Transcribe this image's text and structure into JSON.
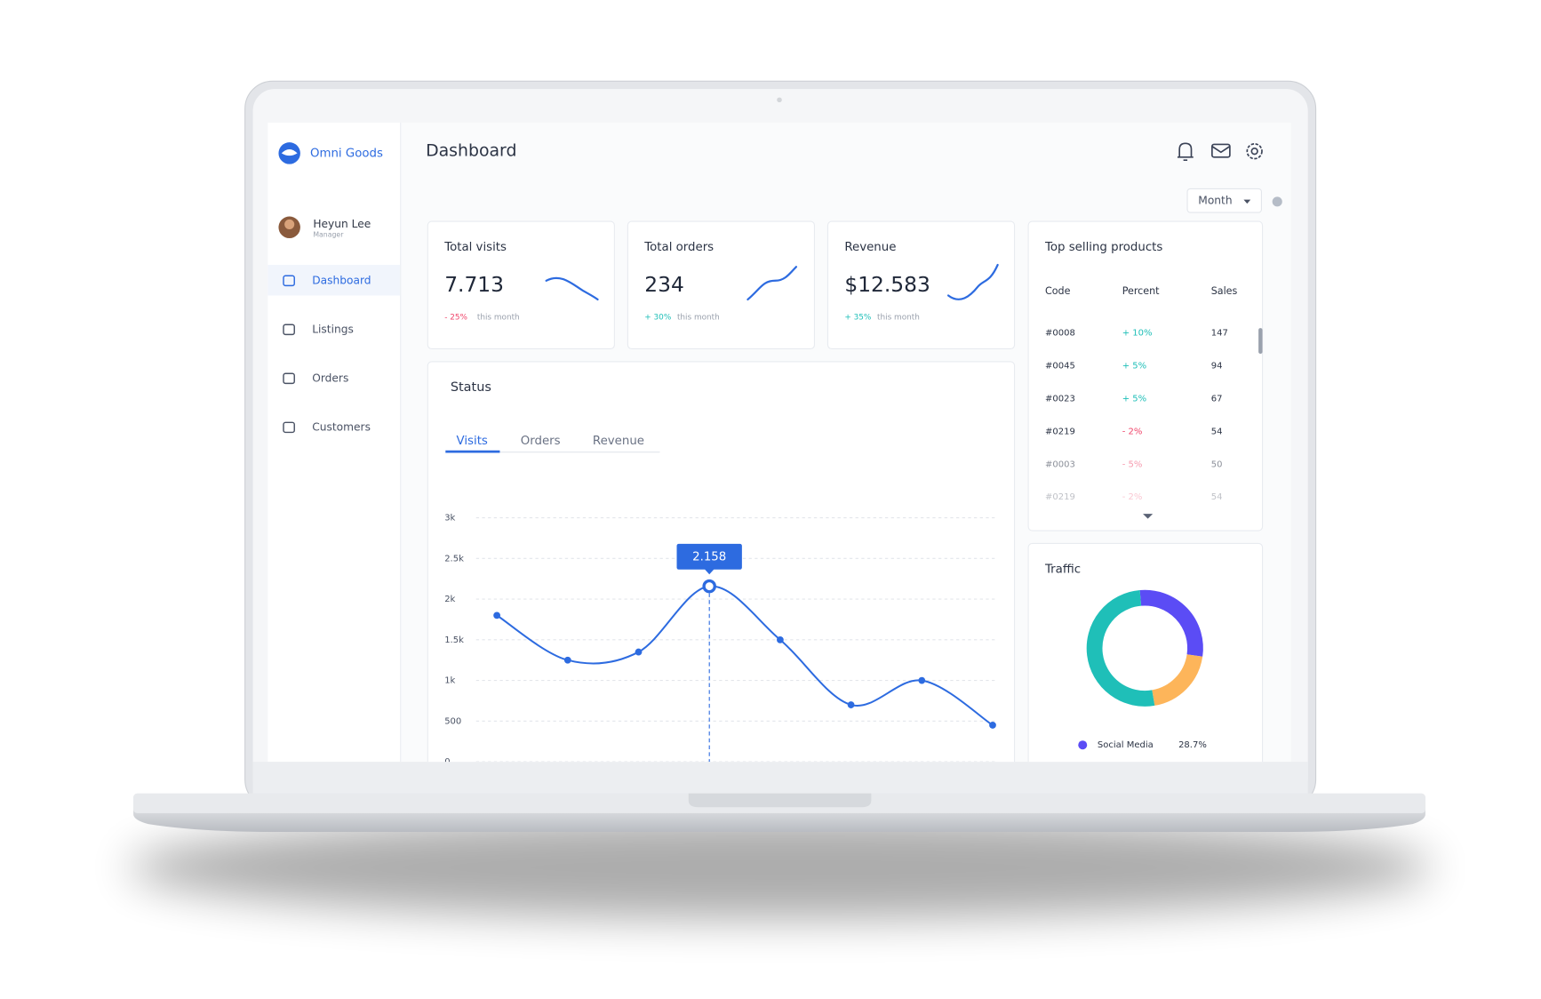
{
  "brand": "Omni Goods",
  "user": {
    "name": "Heyun Lee",
    "role": "Manager"
  },
  "nav": [
    "Dashboard",
    "Listings",
    "Orders",
    "Customers"
  ],
  "header": {
    "title": "Dashboard",
    "period": "Month"
  },
  "stats": [
    {
      "title": "Total visits",
      "value": "7.713",
      "change": "- 25%",
      "note": "this month"
    },
    {
      "title": "Total orders",
      "value": "234",
      "change": "+ 30%",
      "note": "this month"
    },
    {
      "title": "Revenue",
      "value": "$12.583",
      "change": "+ 35%",
      "note": "this month"
    }
  ],
  "status": {
    "title": "Status",
    "tabs": [
      "Visits",
      "Orders",
      "Revenue"
    ],
    "chart_data": {
      "type": "line",
      "categories": [
        null,
        null,
        null,
        null,
        null,
        null,
        null,
        null
      ],
      "values": [
        1800,
        1250,
        1350,
        2158,
        1500,
        700,
        1000,
        450
      ],
      "value_labels": [
        null,
        null,
        null,
        "2.158",
        null,
        null,
        null,
        null
      ],
      "color": "#2d6be0",
      "ylim": [
        0,
        3000
      ],
      "yticks": [
        0,
        500,
        {
          "value": 1000,
          "label": "1k"
        },
        {
          "value": 1500,
          "label": "1.5k"
        },
        {
          "value": 2000,
          "label": "2k"
        },
        {
          "value": 2500,
          "label": "2.5k"
        },
        {
          "value": 3000,
          "label": "3k"
        }
      ],
      "grid": true
    }
  },
  "top_products": {
    "title": "Top selling products",
    "columns": [
      "Code",
      "Percent",
      "Sales"
    ],
    "rows": [
      [
        "#0008",
        "+ 10%",
        147
      ],
      [
        "#0045",
        "+ 5%",
        94
      ],
      [
        "#0023",
        "+ 5%",
        67
      ],
      [
        "#0219",
        "- 2%",
        54
      ],
      [
        "#0003",
        "- 5%",
        50
      ],
      [
        "#0219",
        "- 2%",
        54
      ]
    ]
  },
  "traffic": {
    "title": "Traffic",
    "chart_data": {
      "type": "pie",
      "labels": [
        "Social Media",
        null,
        null
      ],
      "values": [
        28.7,
        20,
        51.3
      ],
      "value_labels": [
        "28.7%",
        null,
        null
      ],
      "colors": [
        "#5b4cf5",
        "#fdb55a",
        "#1fbfb8"
      ]
    }
  }
}
